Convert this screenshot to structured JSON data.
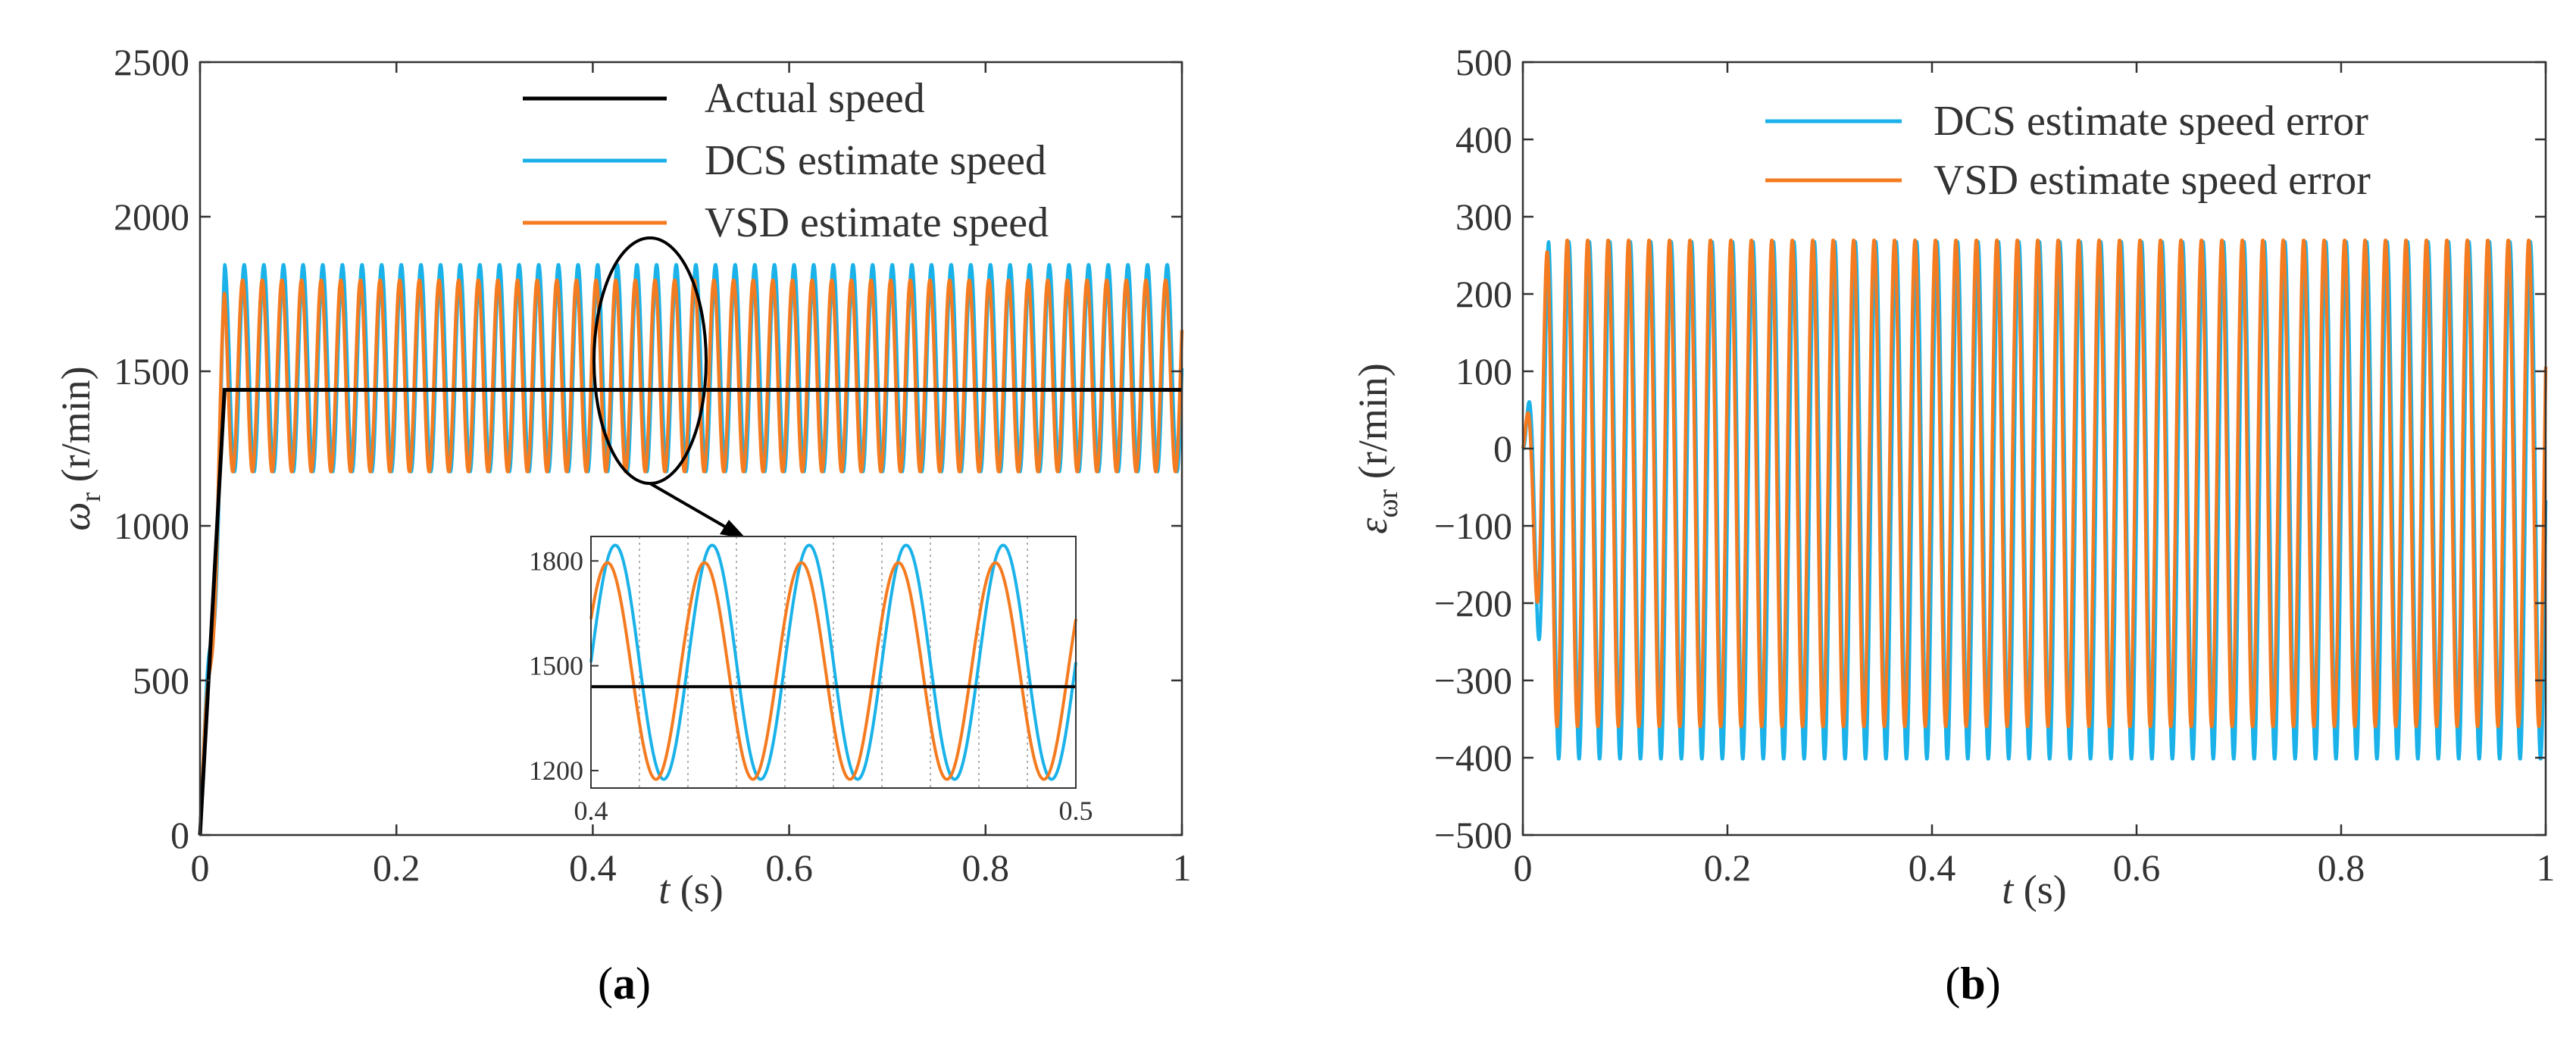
{
  "chart_data": [
    {
      "panel": "a",
      "type": "line",
      "xlabel_var": "t",
      "xlabel_unit": " (s)",
      "ylabel_var": "ω",
      "ylabel_sub": "r",
      "ylabel_unit": " (r/min)",
      "xlim": [
        0,
        1
      ],
      "ylim": [
        0,
        2500
      ],
      "xticks": [
        0,
        0.2,
        0.4,
        0.6,
        0.8,
        1
      ],
      "xtick_labels": [
        "0",
        "0.2",
        "0.4",
        "0.6",
        "0.8",
        "1"
      ],
      "yticks": [
        0,
        500,
        1000,
        1500,
        2000,
        2500
      ],
      "ytick_labels": [
        "0",
        "500",
        "1000",
        "1500",
        "2000",
        "2500"
      ],
      "legend": [
        "Actual speed",
        "DCS estimate speed",
        "VSD estimate speed"
      ],
      "series": [
        {
          "name": "Actual speed",
          "color": "#000000",
          "ramp_end_t": 0.025,
          "value": 1440
        },
        {
          "name": "DCS estimate speed",
          "color": "#1ab2e8",
          "center": 1510,
          "amplitude": 335,
          "frequency": 50,
          "phase": 0.0
        },
        {
          "name": "VSD estimate speed",
          "color": "#f47b20",
          "center": 1485,
          "amplitude": 310,
          "frequency": 50,
          "phase": 0.5
        }
      ],
      "inset": {
        "xlim": [
          0.4,
          0.5
        ],
        "ylim": [
          1150,
          1870
        ],
        "xtick_labels": [
          "0.4",
          "0.5"
        ],
        "yticks": [
          1200,
          1500,
          1800
        ],
        "ytick_labels": [
          "1200",
          "1500",
          "1800"
        ]
      },
      "label": "a"
    },
    {
      "panel": "b",
      "type": "line",
      "xlabel_var": "t",
      "xlabel_unit": " (s)",
      "ylabel_var": "ε",
      "ylabel_sub": "ωr",
      "ylabel_unit": " (r/min)",
      "xlim": [
        0,
        1
      ],
      "ylim": [
        -500,
        500
      ],
      "xticks": [
        0,
        0.2,
        0.4,
        0.6,
        0.8,
        1
      ],
      "xtick_labels": [
        "0",
        "0.2",
        "0.4",
        "0.6",
        "0.8",
        "1"
      ],
      "yticks": [
        -500,
        -400,
        -300,
        -200,
        -100,
        0,
        100,
        200,
        300,
        400,
        500
      ],
      "ytick_labels": [
        "−500",
        "−400",
        "−300",
        "−200",
        "−100",
        "0",
        "100",
        "200",
        "300",
        "400",
        "500"
      ],
      "legend": [
        "DCS estimate speed error",
        "VSD estimate speed error"
      ],
      "series": [
        {
          "name": "DCS estimate speed error",
          "color": "#1ab2e8",
          "center": -67,
          "amplitude": 335,
          "frequency": 50,
          "phase": 0.0
        },
        {
          "name": "VSD estimate speed error",
          "color": "#f47b20",
          "center": -45,
          "amplitude": 315,
          "frequency": 50,
          "phase": 0.5
        }
      ],
      "label": "b"
    }
  ]
}
